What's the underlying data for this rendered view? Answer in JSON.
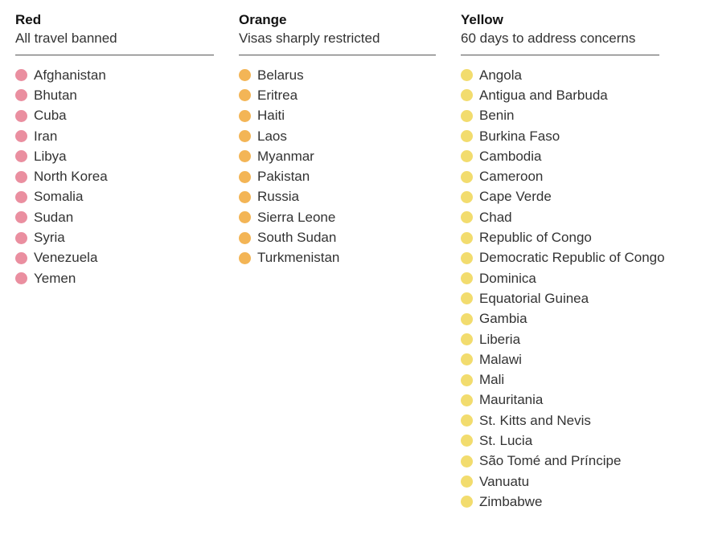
{
  "columns": [
    {
      "id": "red",
      "title": "Red",
      "subtitle": "All travel banned",
      "color": "#ea8fa0",
      "countries": [
        "Afghanistan",
        "Bhutan",
        "Cuba",
        "Iran",
        "Libya",
        "North Korea",
        "Somalia",
        "Sudan",
        "Syria",
        "Venezuela",
        "Yemen"
      ]
    },
    {
      "id": "orange",
      "title": "Orange",
      "subtitle": "Visas sharply restricted",
      "color": "#f3b556",
      "countries": [
        "Belarus",
        "Eritrea",
        "Haiti",
        "Laos",
        "Myanmar",
        "Pakistan",
        "Russia",
        "Sierra Leone",
        "South Sudan",
        "Turkmenistan"
      ]
    },
    {
      "id": "yellow",
      "title": "Yellow",
      "subtitle": "60 days to address concerns",
      "color": "#f2dc6e",
      "countries": [
        "Angola",
        "Antigua and Barbuda",
        "Benin",
        "Burkina Faso",
        "Cambodia",
        "Cameroon",
        "Cape Verde",
        "Chad",
        "Republic of Congo",
        "Democratic Republic of Congo",
        "Dominica",
        "Equatorial Guinea",
        "Gambia",
        "Liberia",
        "Malawi",
        "Mali",
        "Mauritania",
        "St. Kitts and Nevis",
        "St. Lucia",
        "São Tomé and Príncipe",
        "Vanuatu",
        "Zimbabwe"
      ]
    }
  ]
}
